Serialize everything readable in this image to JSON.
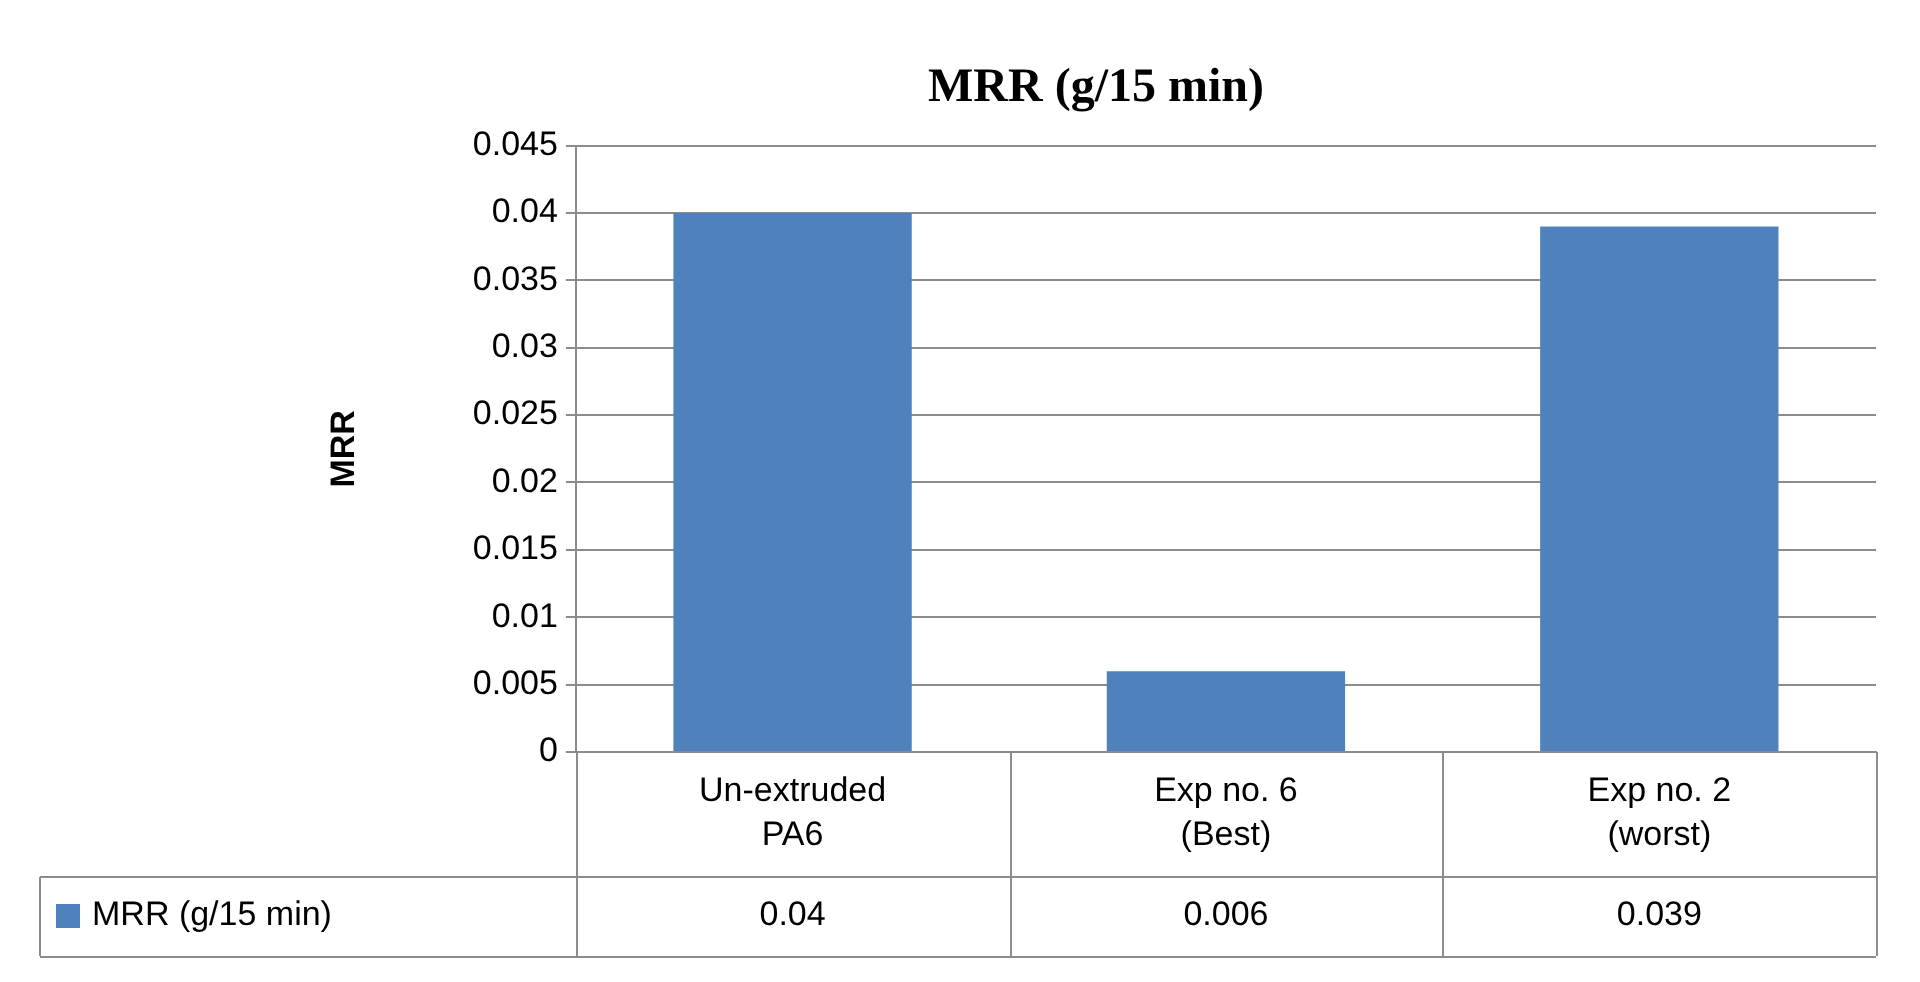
{
  "chart_data": {
    "type": "bar",
    "title": "MRR (g/15 min)",
    "ylabel": "MRR",
    "categories": [
      "Un-extruded PA6",
      "Exp no. 6 (Best)",
      "Exp no. 2 (worst)"
    ],
    "series": [
      {
        "name": "MRR (g/15 min)",
        "color": "#4f81bd",
        "values": [
          0.04,
          0.006,
          0.039
        ]
      }
    ],
    "ylim": [
      0,
      0.045
    ],
    "yticks": [
      0,
      0.005,
      0.01,
      0.015,
      0.02,
      0.025,
      0.03,
      0.035,
      0.04,
      0.045
    ],
    "grid": "y",
    "legend": "bottom",
    "data_labels": true
  }
}
